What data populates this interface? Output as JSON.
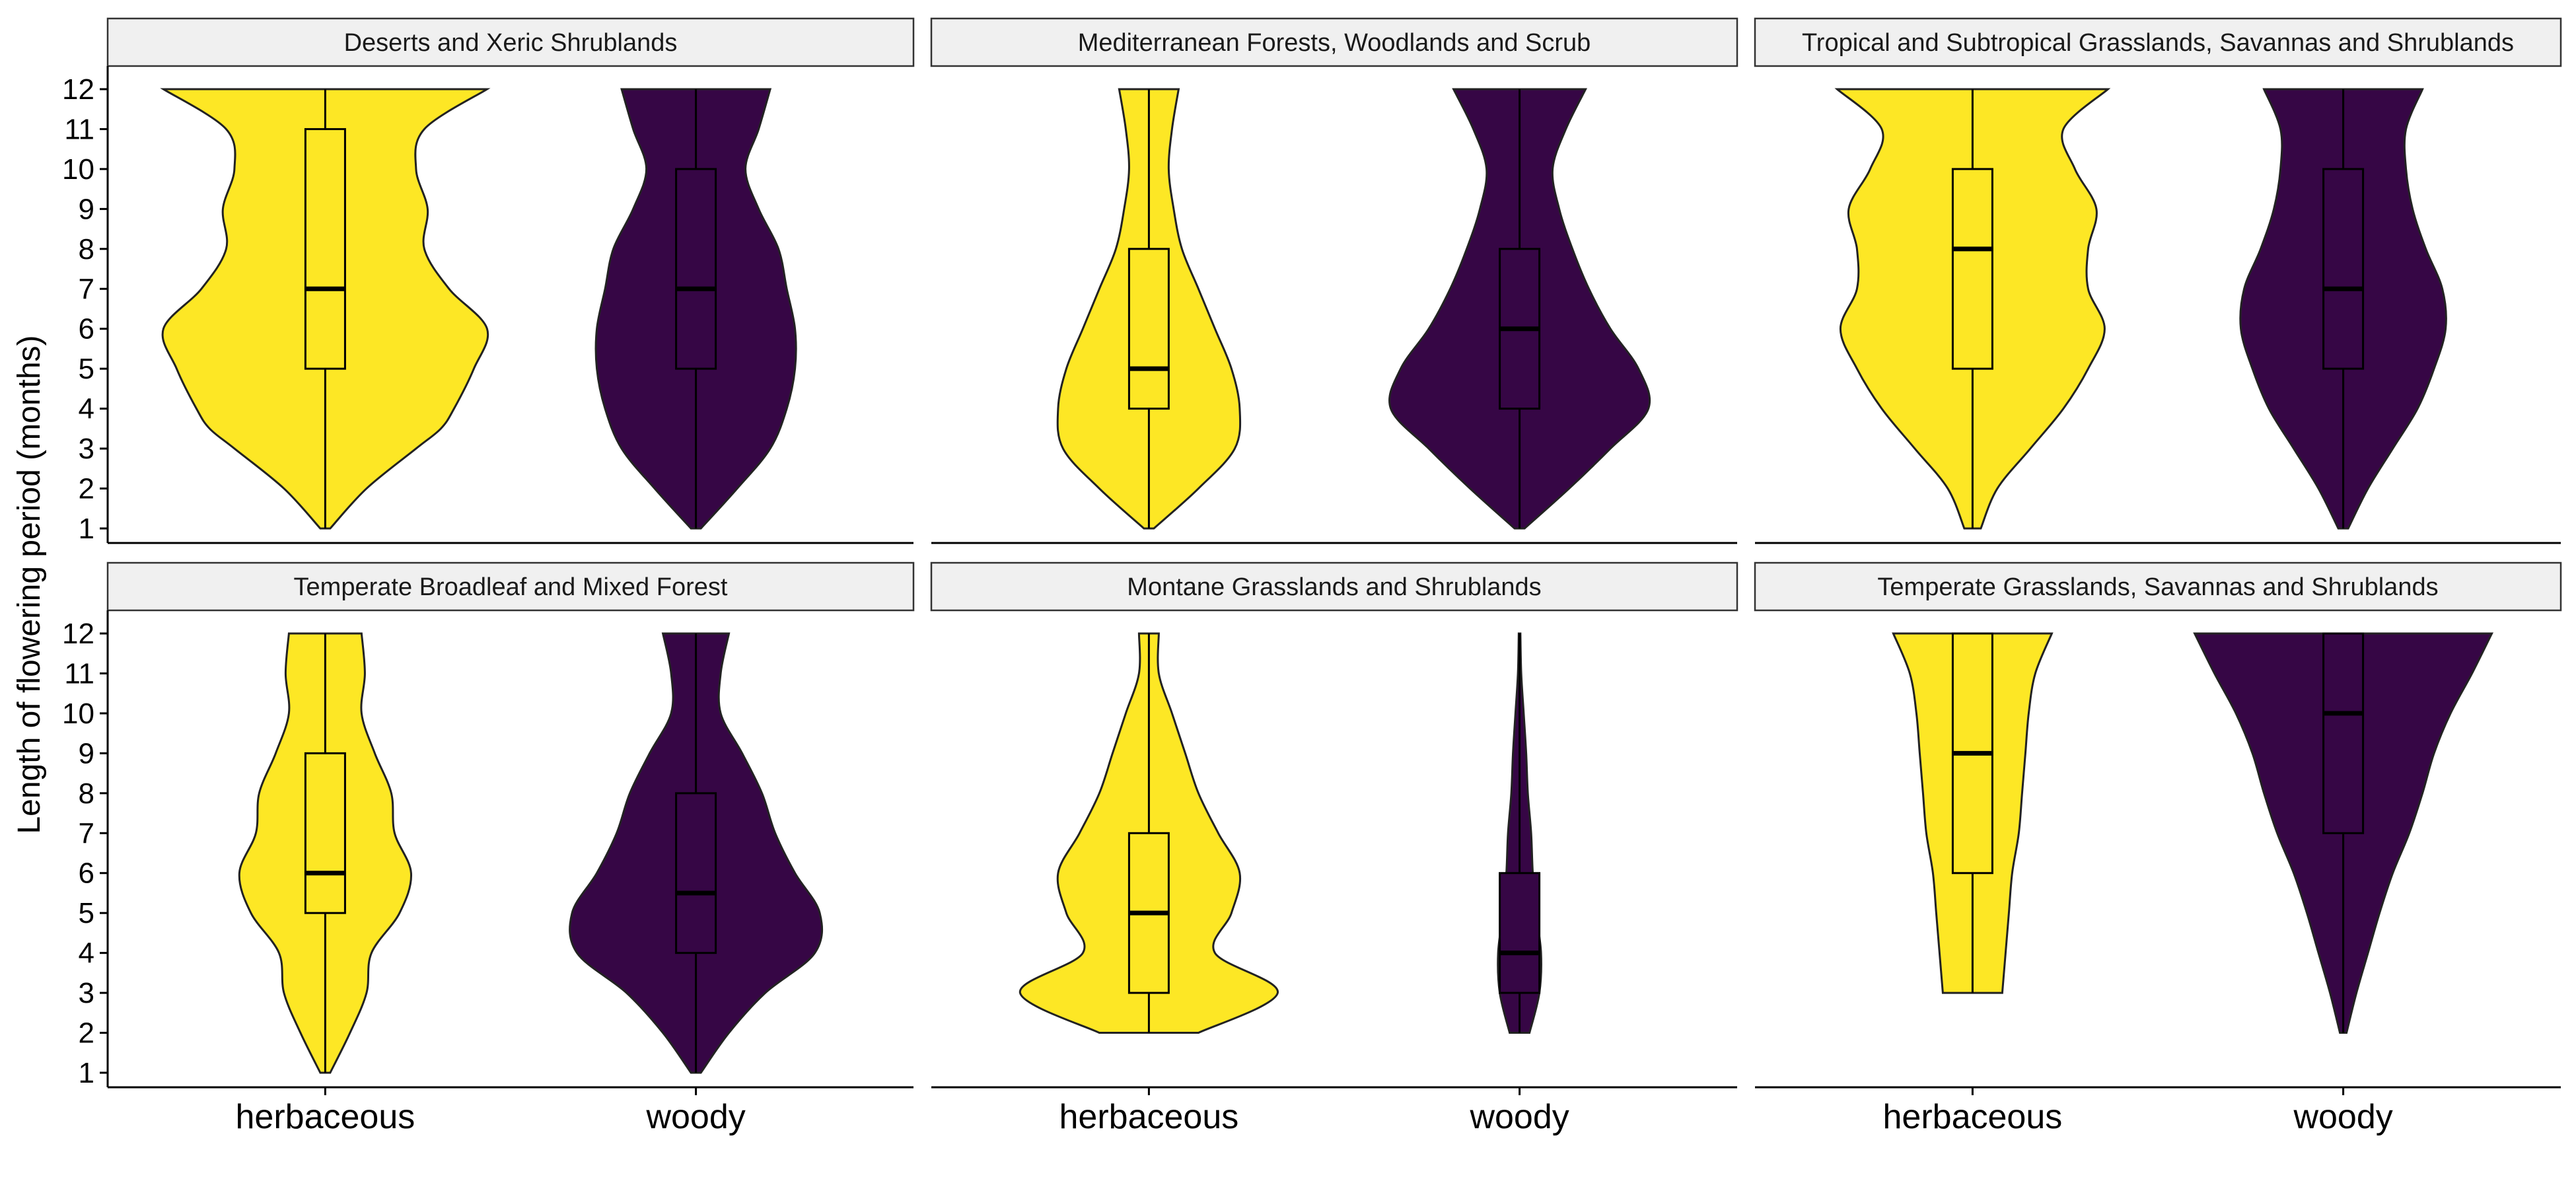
{
  "chart_data": {
    "type": "violin",
    "ylabel": "Length of flowering period (months)",
    "xlabel": "",
    "ylim": [
      1,
      12
    ],
    "yticks": [
      1,
      2,
      3,
      4,
      5,
      6,
      7,
      8,
      9,
      10,
      11,
      12
    ],
    "categories": [
      "herbaceous",
      "woody"
    ],
    "colors": {
      "herbaceous": "#FDE725",
      "woody": "#360645"
    },
    "grid": false,
    "legend": "none",
    "panels": [
      {
        "title": "Deserts and Xeric Shrublands",
        "groups": [
          {
            "category": "herbaceous",
            "min": 1,
            "q1": 5,
            "median": 7,
            "q3": 11,
            "max": 12,
            "profile": [
              [
                1,
                0.03
              ],
              [
                2,
                0.25
              ],
              [
                3,
                0.55
              ],
              [
                3.5,
                0.7
              ],
              [
                4,
                0.78
              ],
              [
                5,
                0.9
              ],
              [
                6,
                0.98
              ],
              [
                7,
                0.75
              ],
              [
                8,
                0.6
              ],
              [
                9,
                0.62
              ],
              [
                10,
                0.55
              ],
              [
                11,
                0.6
              ],
              [
                12,
                0.98
              ]
            ]
          },
          {
            "category": "woody",
            "min": 1,
            "q1": 5,
            "median": 7,
            "q3": 10,
            "max": 12,
            "profile": [
              [
                1,
                0.03
              ],
              [
                2,
                0.25
              ],
              [
                3,
                0.45
              ],
              [
                4,
                0.55
              ],
              [
                5,
                0.6
              ],
              [
                6,
                0.6
              ],
              [
                7,
                0.55
              ],
              [
                8,
                0.5
              ],
              [
                9,
                0.38
              ],
              [
                10,
                0.3
              ],
              [
                11,
                0.38
              ],
              [
                12,
                0.45
              ]
            ]
          }
        ]
      },
      {
        "title": "Mediterranean Forests, Woodlands and Scrub",
        "groups": [
          {
            "category": "herbaceous",
            "min": 1,
            "q1": 4,
            "median": 5,
            "q3": 8,
            "max": 12,
            "profile": [
              [
                1,
                0.03
              ],
              [
                2,
                0.3
              ],
              [
                3,
                0.52
              ],
              [
                4,
                0.55
              ],
              [
                5,
                0.5
              ],
              [
                6,
                0.4
              ],
              [
                7,
                0.3
              ],
              [
                8,
                0.2
              ],
              [
                9,
                0.15
              ],
              [
                10,
                0.12
              ],
              [
                11,
                0.14
              ],
              [
                12,
                0.18
              ]
            ]
          },
          {
            "category": "woody",
            "min": 1,
            "q1": 4,
            "median": 6,
            "q3": 8,
            "max": 12,
            "profile": [
              [
                1,
                0.03
              ],
              [
                2,
                0.3
              ],
              [
                3,
                0.55
              ],
              [
                4,
                0.78
              ],
              [
                5,
                0.72
              ],
              [
                6,
                0.55
              ],
              [
                7,
                0.42
              ],
              [
                8,
                0.32
              ],
              [
                9,
                0.24
              ],
              [
                10,
                0.2
              ],
              [
                11,
                0.28
              ],
              [
                12,
                0.4
              ]
            ]
          }
        ]
      },
      {
        "title": "Tropical and Subtropical Grasslands, Savannas and Shrublands",
        "groups": [
          {
            "category": "herbaceous",
            "min": 1,
            "q1": 5,
            "median": 8,
            "q3": 10,
            "max": 12,
            "profile": [
              [
                1,
                0.05
              ],
              [
                2,
                0.15
              ],
              [
                3,
                0.35
              ],
              [
                4,
                0.55
              ],
              [
                5,
                0.7
              ],
              [
                6,
                0.8
              ],
              [
                7,
                0.7
              ],
              [
                8,
                0.7
              ],
              [
                9,
                0.75
              ],
              [
                10,
                0.62
              ],
              [
                11,
                0.55
              ],
              [
                12,
                0.82
              ]
            ]
          },
          {
            "category": "woody",
            "min": 1,
            "q1": 5,
            "median": 7,
            "q3": 10,
            "max": 12,
            "profile": [
              [
                1,
                0.03
              ],
              [
                2,
                0.15
              ],
              [
                3,
                0.3
              ],
              [
                4,
                0.45
              ],
              [
                5,
                0.55
              ],
              [
                6,
                0.62
              ],
              [
                7,
                0.6
              ],
              [
                8,
                0.5
              ],
              [
                9,
                0.42
              ],
              [
                10,
                0.38
              ],
              [
                11,
                0.38
              ],
              [
                12,
                0.48
              ]
            ]
          }
        ]
      },
      {
        "title": "Temperate Broadleaf and Mixed Forest",
        "groups": [
          {
            "category": "herbaceous",
            "min": 1,
            "q1": 5,
            "median": 6,
            "q3": 9,
            "max": 12,
            "profile": [
              [
                1,
                0.03
              ],
              [
                2,
                0.15
              ],
              [
                3,
                0.25
              ],
              [
                4,
                0.28
              ],
              [
                5,
                0.45
              ],
              [
                6,
                0.52
              ],
              [
                7,
                0.42
              ],
              [
                8,
                0.4
              ],
              [
                9,
                0.3
              ],
              [
                10,
                0.22
              ],
              [
                11,
                0.24
              ],
              [
                12,
                0.22
              ]
            ]
          },
          {
            "category": "woody",
            "min": 1,
            "q1": 4,
            "median": 5.5,
            "q3": 8,
            "max": 12,
            "profile": [
              [
                1,
                0.03
              ],
              [
                2,
                0.2
              ],
              [
                3,
                0.42
              ],
              [
                4,
                0.72
              ],
              [
                5,
                0.75
              ],
              [
                6,
                0.6
              ],
              [
                7,
                0.48
              ],
              [
                8,
                0.4
              ],
              [
                9,
                0.28
              ],
              [
                10,
                0.15
              ],
              [
                11,
                0.15
              ],
              [
                12,
                0.2
              ]
            ]
          }
        ]
      },
      {
        "title": "Montane Grasslands and Shrublands",
        "groups": [
          {
            "category": "herbaceous",
            "min": 2,
            "q1": 3,
            "median": 5,
            "q3": 7,
            "max": 12,
            "profile": [
              [
                2,
                0.3
              ],
              [
                3,
                0.78
              ],
              [
                4,
                0.4
              ],
              [
                5,
                0.5
              ],
              [
                6,
                0.55
              ],
              [
                7,
                0.42
              ],
              [
                8,
                0.3
              ],
              [
                9,
                0.22
              ],
              [
                10,
                0.14
              ],
              [
                11,
                0.06
              ],
              [
                12,
                0.06
              ]
            ]
          },
          {
            "category": "woody",
            "min": 2,
            "q1": 3,
            "median": 4,
            "q3": 6,
            "max": 12,
            "profile": [
              [
                2,
                0.06
              ],
              [
                3,
                0.12
              ],
              [
                4,
                0.13
              ],
              [
                5,
                0.1
              ],
              [
                6,
                0.08
              ],
              [
                7,
                0.07
              ],
              [
                8,
                0.05
              ],
              [
                9,
                0.04
              ],
              [
                10,
                0.025
              ],
              [
                11,
                0.01
              ],
              [
                12,
                0.005
              ]
            ]
          }
        ]
      },
      {
        "title": "Temperate Grasslands, Savannas and Shrublands",
        "groups": [
          {
            "category": "herbaceous",
            "min": 3,
            "q1": 6,
            "median": 9,
            "q3": 12,
            "max": 12,
            "profile": [
              [
                3,
                0.18
              ],
              [
                4,
                0.2
              ],
              [
                5,
                0.22
              ],
              [
                6,
                0.24
              ],
              [
                7,
                0.28
              ],
              [
                8,
                0.3
              ],
              [
                9,
                0.32
              ],
              [
                10,
                0.34
              ],
              [
                11,
                0.38
              ],
              [
                12,
                0.48
              ]
            ]
          },
          {
            "category": "woody",
            "min": 2,
            "q1": 7,
            "median": 10,
            "q3": 12,
            "max": 12,
            "profile": [
              [
                2,
                0.02
              ],
              [
                3,
                0.08
              ],
              [
                4,
                0.15
              ],
              [
                5,
                0.22
              ],
              [
                6,
                0.3
              ],
              [
                7,
                0.4
              ],
              [
                8,
                0.48
              ],
              [
                9,
                0.55
              ],
              [
                10,
                0.65
              ],
              [
                11,
                0.78
              ],
              [
                12,
                0.9
              ]
            ]
          }
        ]
      }
    ]
  }
}
